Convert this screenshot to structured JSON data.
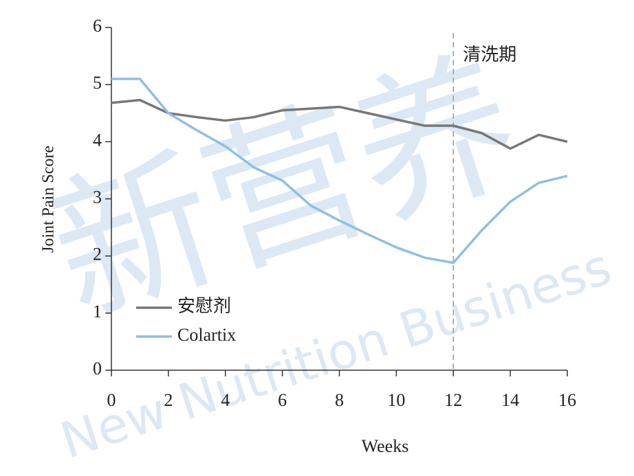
{
  "chart_data": {
    "type": "line",
    "x_label": "Weeks",
    "y_label": "Joint Pain Score",
    "x": [
      0,
      1,
      2,
      3,
      4,
      5,
      6,
      7,
      8,
      9,
      10,
      11,
      12,
      13,
      14,
      15,
      16
    ],
    "series": [
      {
        "name": "安慰剂",
        "color": "#777777",
        "values": [
          4.68,
          4.73,
          4.5,
          4.43,
          4.37,
          4.43,
          4.55,
          4.58,
          4.61,
          4.5,
          4.39,
          4.28,
          4.28,
          4.15,
          3.88,
          4.12,
          4.0
        ]
      },
      {
        "name": "Colartix",
        "color": "#8dbfe6",
        "values": [
          5.1,
          5.1,
          4.5,
          4.2,
          3.92,
          3.55,
          3.32,
          2.88,
          2.62,
          2.38,
          2.15,
          1.97,
          1.88,
          2.45,
          2.95,
          3.28,
          3.4
        ]
      }
    ],
    "xlim": [
      0,
      16
    ],
    "xticks": [
      0,
      2,
      4,
      6,
      8,
      10,
      12,
      14,
      16
    ],
    "ylim": [
      0,
      6
    ],
    "yticks": [
      0,
      1,
      2,
      3,
      4,
      5,
      6
    ],
    "annotation": {
      "x": 12,
      "label": "清洗期",
      "color": "#999999"
    },
    "legend": "lower left",
    "watermark": [
      "新营养",
      "New Nutrition Business"
    ]
  }
}
